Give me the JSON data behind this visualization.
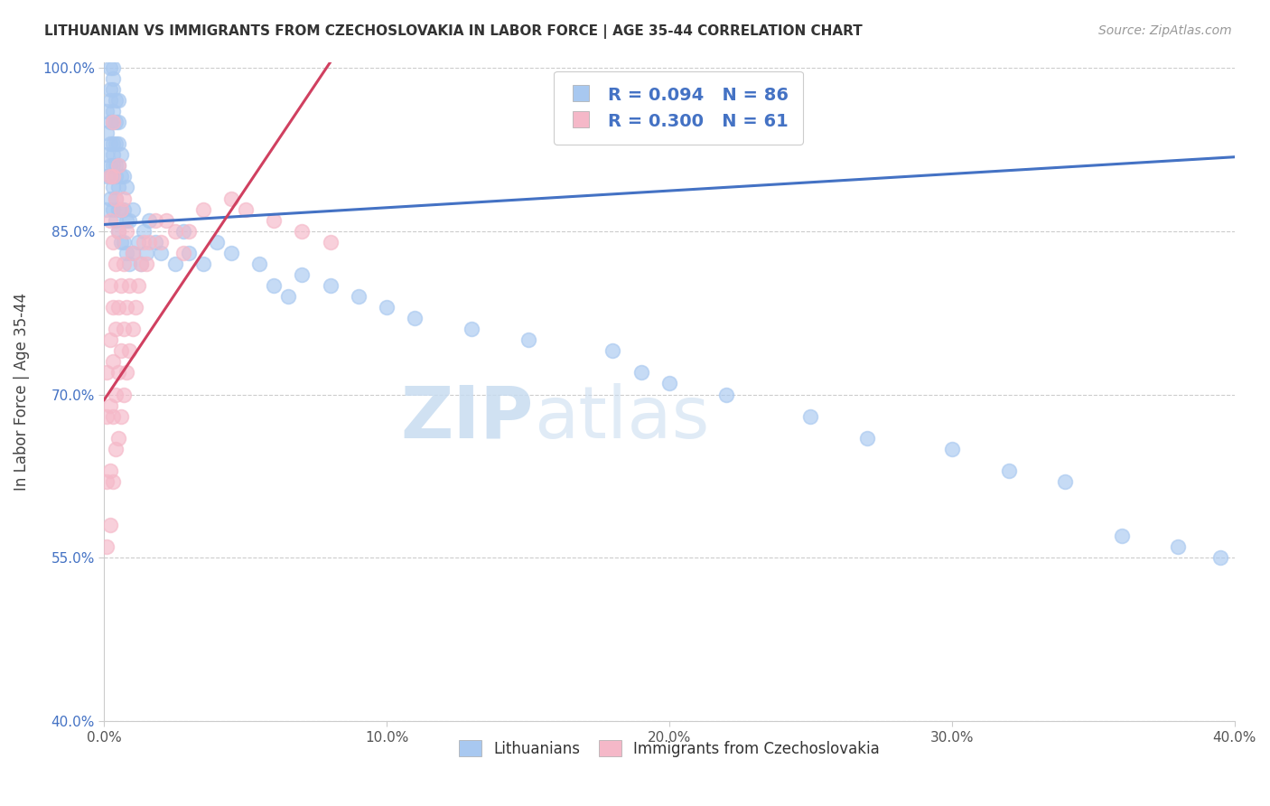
{
  "title": "LITHUANIAN VS IMMIGRANTS FROM CZECHOSLOVAKIA IN LABOR FORCE | AGE 35-44 CORRELATION CHART",
  "source": "Source: ZipAtlas.com",
  "ylabel": "In Labor Force | Age 35-44",
  "xmin": 0.0,
  "xmax": 0.4,
  "ymin": 0.4,
  "ymax": 1.005,
  "yticks": [
    0.4,
    0.55,
    0.7,
    0.85,
    1.0
  ],
  "ytick_labels": [
    "40.0%",
    "55.0%",
    "70.0%",
    "85.0%",
    "100.0%"
  ],
  "xticks": [
    0.0,
    0.1,
    0.2,
    0.3,
    0.4
  ],
  "xtick_labels": [
    "0.0%",
    "10.0%",
    "20.0%",
    "30.0%",
    "40.0%"
  ],
  "blue_R": 0.094,
  "blue_N": 86,
  "pink_R": 0.3,
  "pink_N": 61,
  "blue_color": "#A8C8F0",
  "pink_color": "#F5B8C8",
  "blue_line_color": "#4472C4",
  "pink_line_color": "#D04060",
  "watermark_zip": "ZIP",
  "watermark_atlas": "atlas",
  "legend_blue_label": "Lithuanians",
  "legend_pink_label": "Immigrants from Czechoslovakia",
  "blue_points_x": [
    0.001,
    0.001,
    0.001,
    0.001,
    0.001,
    0.002,
    0.002,
    0.002,
    0.002,
    0.002,
    0.002,
    0.002,
    0.002,
    0.003,
    0.003,
    0.003,
    0.003,
    0.003,
    0.003,
    0.003,
    0.003,
    0.003,
    0.003,
    0.004,
    0.004,
    0.004,
    0.004,
    0.004,
    0.004,
    0.004,
    0.005,
    0.005,
    0.005,
    0.005,
    0.005,
    0.005,
    0.005,
    0.006,
    0.006,
    0.006,
    0.006,
    0.007,
    0.007,
    0.007,
    0.008,
    0.008,
    0.008,
    0.009,
    0.009,
    0.01,
    0.01,
    0.012,
    0.013,
    0.014,
    0.015,
    0.016,
    0.018,
    0.02,
    0.025,
    0.028,
    0.03,
    0.035,
    0.04,
    0.045,
    0.055,
    0.06,
    0.065,
    0.07,
    0.08,
    0.09,
    0.1,
    0.11,
    0.13,
    0.15,
    0.18,
    0.19,
    0.2,
    0.22,
    0.25,
    0.27,
    0.3,
    0.32,
    0.34,
    0.36,
    0.38,
    0.395
  ],
  "blue_points_y": [
    0.87,
    0.9,
    0.92,
    0.94,
    0.96,
    0.88,
    0.9,
    0.91,
    0.93,
    0.95,
    0.97,
    0.98,
    1.0,
    0.87,
    0.89,
    0.91,
    0.92,
    0.93,
    0.95,
    0.96,
    0.98,
    0.99,
    1.0,
    0.86,
    0.88,
    0.9,
    0.91,
    0.93,
    0.95,
    0.97,
    0.85,
    0.87,
    0.89,
    0.91,
    0.93,
    0.95,
    0.97,
    0.84,
    0.87,
    0.9,
    0.92,
    0.84,
    0.87,
    0.9,
    0.83,
    0.86,
    0.89,
    0.82,
    0.86,
    0.83,
    0.87,
    0.84,
    0.82,
    0.85,
    0.83,
    0.86,
    0.84,
    0.83,
    0.82,
    0.85,
    0.83,
    0.82,
    0.84,
    0.83,
    0.82,
    0.8,
    0.79,
    0.81,
    0.8,
    0.79,
    0.78,
    0.77,
    0.76,
    0.75,
    0.74,
    0.72,
    0.71,
    0.7,
    0.68,
    0.66,
    0.65,
    0.63,
    0.62,
    0.57,
    0.56,
    0.55
  ],
  "pink_points_x": [
    0.001,
    0.001,
    0.001,
    0.001,
    0.002,
    0.002,
    0.002,
    0.002,
    0.002,
    0.002,
    0.002,
    0.003,
    0.003,
    0.003,
    0.003,
    0.003,
    0.003,
    0.003,
    0.004,
    0.004,
    0.004,
    0.004,
    0.004,
    0.005,
    0.005,
    0.005,
    0.005,
    0.005,
    0.006,
    0.006,
    0.006,
    0.006,
    0.007,
    0.007,
    0.007,
    0.007,
    0.008,
    0.008,
    0.008,
    0.009,
    0.009,
    0.01,
    0.01,
    0.011,
    0.012,
    0.013,
    0.014,
    0.015,
    0.016,
    0.018,
    0.02,
    0.022,
    0.025,
    0.028,
    0.03,
    0.035,
    0.045,
    0.05,
    0.06,
    0.07,
    0.08
  ],
  "pink_points_y": [
    0.56,
    0.62,
    0.68,
    0.72,
    0.58,
    0.63,
    0.69,
    0.75,
    0.8,
    0.86,
    0.9,
    0.62,
    0.68,
    0.73,
    0.78,
    0.84,
    0.9,
    0.95,
    0.65,
    0.7,
    0.76,
    0.82,
    0.88,
    0.66,
    0.72,
    0.78,
    0.85,
    0.91,
    0.68,
    0.74,
    0.8,
    0.87,
    0.7,
    0.76,
    0.82,
    0.88,
    0.72,
    0.78,
    0.85,
    0.74,
    0.8,
    0.76,
    0.83,
    0.78,
    0.8,
    0.82,
    0.84,
    0.82,
    0.84,
    0.86,
    0.84,
    0.86,
    0.85,
    0.83,
    0.85,
    0.87,
    0.88,
    0.87,
    0.86,
    0.85,
    0.84
  ],
  "blue_line_x0": 0.0,
  "blue_line_y0": 0.856,
  "blue_line_x1": 0.4,
  "blue_line_y1": 0.918,
  "pink_line_x0": 0.0,
  "pink_line_y0": 0.695,
  "pink_line_x1": 0.08,
  "pink_line_y1": 1.005
}
